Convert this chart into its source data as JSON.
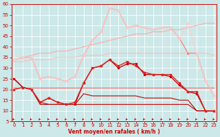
{
  "x": [
    0,
    1,
    2,
    3,
    4,
    5,
    6,
    7,
    8,
    9,
    10,
    11,
    12,
    13,
    14,
    15,
    16,
    17,
    18,
    19,
    20,
    21,
    22,
    23
  ],
  "series": [
    {
      "y": [
        25,
        21,
        20,
        14,
        16,
        14,
        13,
        13,
        23,
        30,
        31,
        34,
        30,
        32,
        32,
        27,
        27,
        27,
        26,
        22,
        19,
        18,
        10,
        10
      ],
      "color": "#cc0000",
      "lw": 1.0,
      "marker": "s",
      "ms": 2.0
    },
    {
      "y": [
        25,
        21,
        20,
        14,
        13,
        13,
        13,
        13,
        13,
        13,
        13,
        13,
        13,
        13,
        13,
        13,
        13,
        13,
        13,
        13,
        13,
        10,
        10,
        10
      ],
      "color": "#cc0000",
      "lw": 0.8,
      "marker": null,
      "ms": 0
    },
    {
      "y": [
        25,
        21,
        20,
        13,
        13,
        13,
        13,
        13,
        18,
        17,
        17,
        17,
        17,
        17,
        17,
        16,
        16,
        16,
        16,
        15,
        15,
        10,
        10,
        10
      ],
      "color": "#bb0000",
      "lw": 0.8,
      "marker": null,
      "ms": 0
    },
    {
      "y": [
        20,
        21,
        20,
        14,
        16,
        14,
        13,
        14,
        23,
        30,
        31,
        34,
        31,
        33,
        31,
        28,
        27,
        27,
        27,
        23,
        19,
        19,
        10,
        10
      ],
      "color": "#dd2222",
      "lw": 1.0,
      "marker": "s",
      "ms": 2.0
    },
    {
      "y": [
        34,
        35,
        35,
        25,
        26,
        25,
        24,
        26,
        36,
        43,
        47,
        58,
        57,
        49,
        50,
        49,
        48,
        49,
        49,
        44,
        37,
        37,
        24,
        17
      ],
      "color": "#ff8888",
      "lw": 1.0,
      "marker": "s",
      "ms": 2.0
    },
    {
      "y": [
        34,
        35,
        36,
        37,
        37,
        38,
        38,
        39,
        40,
        41,
        42,
        43,
        44,
        45,
        46,
        46,
        47,
        47,
        48,
        48,
        49,
        50,
        51,
        51
      ],
      "color": "#ffaaaa",
      "lw": 0.8,
      "marker": null,
      "ms": 0
    },
    {
      "y": [
        33,
        33,
        34,
        34,
        34,
        35,
        35,
        35,
        36,
        36,
        36,
        37,
        37,
        37,
        37,
        37,
        37,
        37,
        37,
        37,
        37,
        37,
        37,
        36
      ],
      "color": "#ffbbbb",
      "lw": 0.8,
      "marker": null,
      "ms": 0
    },
    {
      "y": [
        34,
        35,
        35,
        25,
        26,
        25,
        24,
        26,
        36,
        43,
        47,
        58,
        57,
        49,
        50,
        49,
        48,
        49,
        49,
        44,
        51,
        37,
        24,
        17
      ],
      "color": "#ffcccc",
      "lw": 0.8,
      "marker": "s",
      "ms": 1.5
    },
    {
      "y": [
        21,
        21,
        21,
        21,
        21,
        21,
        21,
        21,
        21,
        21,
        21,
        21,
        21,
        21,
        21,
        21,
        21,
        21,
        21,
        21,
        21,
        21,
        21,
        21
      ],
      "color": "#ff6666",
      "lw": 0.8,
      "marker": null,
      "ms": 0
    }
  ],
  "bg_color": "#cce8e8",
  "grid_color": "#ffffff",
  "axis_color": "#cc0000",
  "tick_color": "#cc0000",
  "xlabel": "Vent moyen/en rafales ( km/h )",
  "xlim": [
    -0.3,
    23.3
  ],
  "ylim": [
    5,
    60
  ],
  "yticks": [
    5,
    10,
    15,
    20,
    25,
    30,
    35,
    40,
    45,
    50,
    55,
    60
  ],
  "xticks": [
    0,
    1,
    2,
    3,
    4,
    5,
    6,
    7,
    8,
    9,
    10,
    11,
    12,
    13,
    14,
    15,
    16,
    17,
    18,
    19,
    20,
    21,
    22,
    23
  ],
  "xlabel_fontsize": 5.5,
  "tick_fontsize": 5.0
}
